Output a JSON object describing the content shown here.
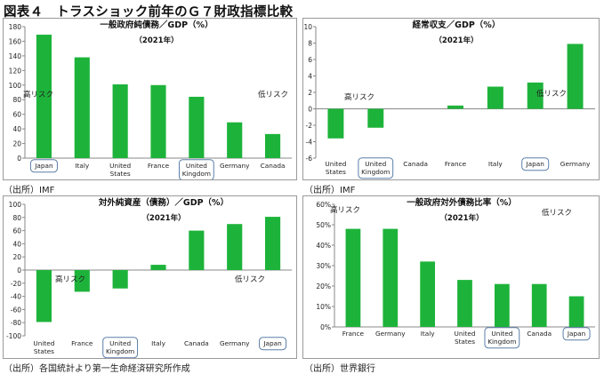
{
  "figure_title": "図表４　トラスショック前年のＧ７財政指標比較",
  "chart_data": [
    {
      "type": "bar",
      "title": "一般政府純債務／GDP（%）",
      "subtitle": "（2021年）",
      "categories": [
        "Japan",
        "Italy",
        "United States",
        "France",
        "United Kingdom",
        "Germany",
        "Canada"
      ],
      "values": [
        169,
        138,
        101,
        100,
        84,
        49,
        33
      ],
      "ylim": [
        0,
        180
      ],
      "yticks": [
        0,
        20,
        40,
        60,
        80,
        100,
        120,
        140,
        160,
        180
      ],
      "tick_format": "int",
      "highlighted": [
        "Japan",
        "United Kingdom"
      ],
      "bar_color": "#1db33a",
      "grid": false,
      "annotations": [
        "高リスク",
        "低リスク"
      ],
      "source": "（出所）IMF"
    },
    {
      "type": "bar",
      "title": "経常収支／GDP（%）",
      "subtitle": "（2021年）",
      "categories": [
        "United States",
        "United Kingdom",
        "Canada",
        "France",
        "Italy",
        "Japan",
        "Germany"
      ],
      "values": [
        -3.6,
        -2.3,
        0.0,
        0.4,
        2.7,
        3.2,
        7.9
      ],
      "ylim": [
        -6,
        10
      ],
      "yticks": [
        -6,
        -4,
        -2,
        0,
        2,
        4,
        6,
        8,
        10
      ],
      "tick_format": "int",
      "highlighted": [
        "United Kingdom",
        "Japan"
      ],
      "bar_color": "#1db33a",
      "grid": false,
      "annotations": [
        "高リスク",
        "低リスク"
      ],
      "source": "（出所）IMF"
    },
    {
      "type": "bar",
      "title": "対外純資産（債務）／GDP（%）",
      "subtitle": "（2021年）",
      "categories": [
        "United States",
        "France",
        "United Kingdom",
        "Italy",
        "Canada",
        "Germany",
        "Japan"
      ],
      "values": [
        -79,
        -33,
        -28,
        8,
        60,
        70,
        81
      ],
      "ylim": [
        -100,
        100
      ],
      "yticks": [
        -100,
        -80,
        -60,
        -40,
        -20,
        0,
        20,
        40,
        60,
        80,
        100
      ],
      "tick_format": "int",
      "highlighted": [
        "United Kingdom",
        "Japan"
      ],
      "bar_color": "#1db33a",
      "grid": false,
      "annotations": [
        "高リスク",
        "低リスク"
      ],
      "source": "（出所）各国統計より第一生命経済研究所作成"
    },
    {
      "type": "bar",
      "title": "一般政府対外債務比率（%）",
      "subtitle": "（2021年）",
      "categories": [
        "France",
        "Germany",
        "Italy",
        "United States",
        "United Kingdom",
        "Canada",
        "Japan"
      ],
      "values": [
        48,
        48,
        32,
        23,
        21,
        21,
        15
      ],
      "ylim": [
        0,
        60
      ],
      "yticks": [
        0,
        10,
        20,
        30,
        40,
        50,
        60
      ],
      "tick_format": "percent",
      "highlighted": [
        "United Kingdom",
        "Japan"
      ],
      "bar_color": "#1db33a",
      "grid": false,
      "annotations": [
        "高リスク",
        "低リスク"
      ],
      "source": "（出所）世界銀行"
    }
  ]
}
